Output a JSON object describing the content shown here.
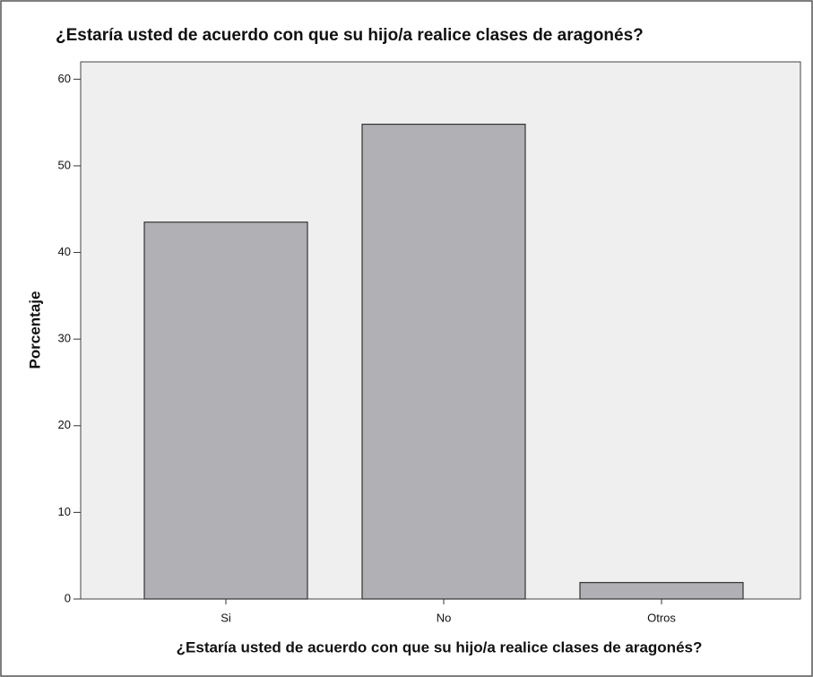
{
  "chart_data": {
    "type": "bar",
    "title": "¿Estaría usted de acuerdo con que su hijo/a realice clases de aragonés?",
    "x_label": "¿Estaría usted de acuerdo con que su hijo/a realice clases de aragonés?",
    "y_label": "Porcentaje",
    "categories": [
      "Si",
      "No",
      "Otros"
    ],
    "values": [
      43.5,
      54.8,
      1.9
    ],
    "color": "#b1b1b5",
    "ylim": [
      0,
      62
    ],
    "yticks": [
      0,
      10,
      20,
      30,
      40,
      50,
      60
    ],
    "grid": false
  }
}
